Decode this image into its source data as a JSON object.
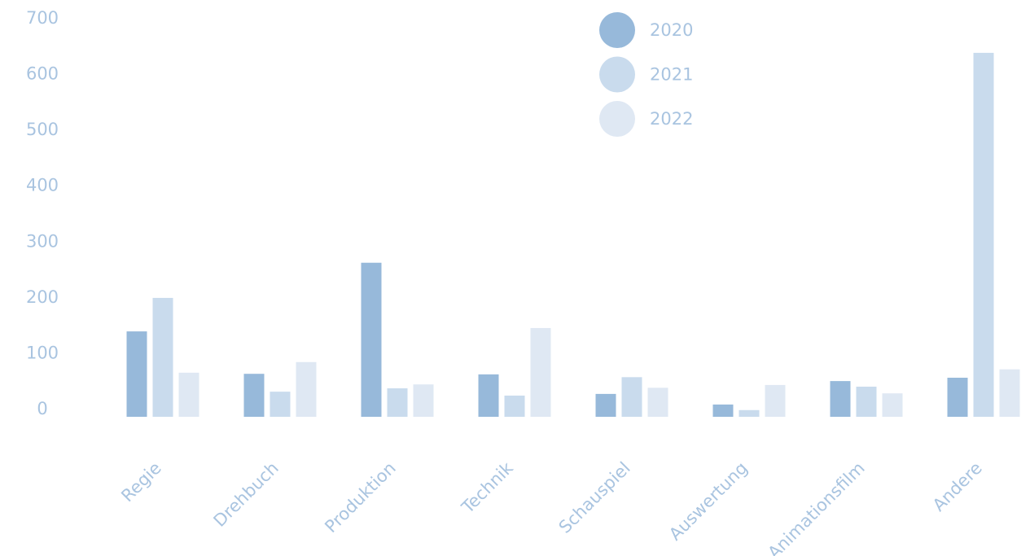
{
  "chart_data": {
    "type": "bar",
    "categories": [
      "Regie",
      "Drehbuch",
      "Produktion",
      "Technik",
      "Schauspiel",
      "Auswertung",
      "Animationsfilm",
      "Andere"
    ],
    "series": [
      {
        "name": "2020",
        "color": "#97b9da",
        "values": [
          153,
          77,
          276,
          76,
          41,
          22,
          64,
          70
        ]
      },
      {
        "name": "2021",
        "color": "#c9dbed",
        "values": [
          213,
          45,
          51,
          38,
          71,
          12,
          54,
          652
        ]
      },
      {
        "name": "2022",
        "color": "#dfe8f3",
        "values": [
          79,
          98,
          58,
          159,
          52,
          57,
          42,
          85
        ]
      }
    ],
    "ylim": [
      0,
      700
    ],
    "yticks": [
      0,
      100,
      200,
      300,
      400,
      500,
      600,
      700
    ],
    "grid": false,
    "legend": "top"
  }
}
